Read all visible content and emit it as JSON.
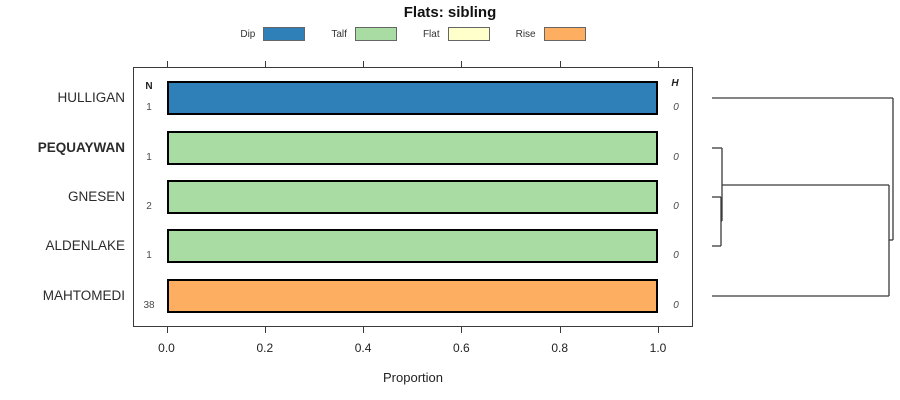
{
  "title": "Flats: sibling",
  "columns": {
    "n_header": "N",
    "h_header": "H"
  },
  "legend": {
    "items": [
      {
        "label": "Dip",
        "color": "#2f80b9"
      },
      {
        "label": "Talf",
        "color": "#a9dca3"
      },
      {
        "label": "Flat",
        "color": "#ffffcc"
      },
      {
        "label": "Rise",
        "color": "#fdae61"
      }
    ]
  },
  "chart_data": {
    "type": "bar",
    "orientation": "horizontal",
    "title": "Flats: sibling",
    "xlabel": "Proportion",
    "xlim": [
      0.0,
      1.0
    ],
    "xticks": [
      "0.0",
      "0.2",
      "0.4",
      "0.6",
      "0.8",
      "1.0"
    ],
    "legend_position": "top",
    "class_colors": {
      "Dip": "#2f80b9",
      "Talf": "#a9dca3",
      "Flat": "#ffffcc",
      "Rise": "#fdae61"
    },
    "categories": [
      "HULLIGAN",
      "PEQUAYWAN",
      "GNESEN",
      "ALDENLAKE",
      "MAHTOMEDI"
    ],
    "rows": [
      {
        "label": "HULLIGAN",
        "bold": false,
        "n": "1",
        "h": "0",
        "segments": [
          {
            "class": "Dip",
            "value": 1.0
          }
        ]
      },
      {
        "label": "PEQUAYWAN",
        "bold": true,
        "n": "1",
        "h": "0",
        "segments": [
          {
            "class": "Talf",
            "value": 1.0
          }
        ]
      },
      {
        "label": "GNESEN",
        "bold": false,
        "n": "2",
        "h": "0",
        "segments": [
          {
            "class": "Talf",
            "value": 1.0
          }
        ]
      },
      {
        "label": "ALDENLAKE",
        "bold": false,
        "n": "1",
        "h": "0",
        "segments": [
          {
            "class": "Talf",
            "value": 1.0
          }
        ]
      },
      {
        "label": "MAHTOMEDI",
        "bold": false,
        "n": "38",
        "h": "0",
        "segments": [
          {
            "class": "Rise",
            "value": 1.0
          }
        ]
      }
    ],
    "dendrogram": {
      "line_color": "#3a3a3a",
      "segments": [
        [
          712,
          98,
          893,
          98
        ],
        [
          893,
          98,
          893,
          240
        ],
        [
          889,
          240,
          893,
          240
        ],
        [
          889,
          185,
          889,
          296
        ],
        [
          712,
          296,
          889,
          296
        ],
        [
          722,
          185,
          889,
          185
        ],
        [
          722,
          148,
          722,
          221
        ],
        [
          712,
          148,
          722,
          148
        ],
        [
          721,
          221,
          722,
          221
        ],
        [
          721,
          197,
          721,
          246
        ],
        [
          712,
          197,
          721,
          197
        ],
        [
          712,
          246,
          721,
          246
        ]
      ]
    }
  }
}
